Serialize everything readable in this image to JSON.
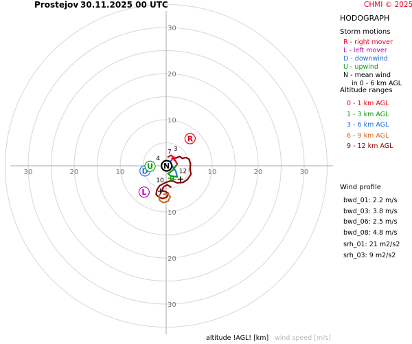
{
  "header": {
    "station": "Prostejov",
    "datetime": "30.11.2025 00 UTC",
    "credit": "CHMI © 2025"
  },
  "side_panel": {
    "title": "HODOGRAPH",
    "storm_motions_title": "Storm motions",
    "storm_motions": [
      {
        "text": "R - right mover",
        "color": "#e8001c"
      },
      {
        "text": "L - left mover",
        "color": "#b000b0"
      },
      {
        "text": "D - downwind",
        "color": "#1f6fe0"
      },
      {
        "text": "U - upwind",
        "color": "#0a9a0a"
      },
      {
        "text": "N - mean wind",
        "color": "#000000"
      },
      {
        "text": "in 0 - 6 km AGL",
        "color": "#000000"
      }
    ],
    "altitude_title": "Altitude ranges",
    "altitude_ranges": [
      {
        "text": "0 - 1 km AGL",
        "color": "#e8001c"
      },
      {
        "text": "1 - 3 km AGL",
        "color": "#0a9a0a"
      },
      {
        "text": "3 - 6 km AGL",
        "color": "#1f6fe0"
      },
      {
        "text": "6 - 9 km AGL",
        "color": "#d2691e"
      },
      {
        "text": "9 - 12 km AGL",
        "color": "#8b0000"
      }
    ],
    "wind_profile_title": "Wind profile",
    "wind_profile": [
      {
        "text": "bwd_01: 2.2 m/s"
      },
      {
        "text": "bwd_03: 3.8 m/s"
      },
      {
        "text": "bwd_06: 2.5 m/s"
      },
      {
        "text": "bwd_08: 4.8 m/s"
      }
    ],
    "srh": [
      {
        "text": "srh_01: 21 m2/s2"
      },
      {
        "text": "srh_03: 9 m2/s2"
      }
    ]
  },
  "footer": {
    "xlabel": "altitude !AGL! [km]",
    "unit_label": "wind speed [m/s]"
  },
  "chart_data": {
    "type": "line",
    "title": "HODOGRAPH",
    "xlim": [
      -35,
      35
    ],
    "ylim": [
      -35,
      35
    ],
    "ring_values": [
      5,
      10,
      15,
      20,
      25,
      30,
      35
    ],
    "tick_values": [
      10,
      20,
      30
    ],
    "x_tick_labels": [
      "30",
      "20",
      "10",
      "10",
      "20",
      "30"
    ],
    "y_tick_labels": [
      "30",
      "20",
      "10",
      "10",
      "20",
      "30"
    ],
    "grid": true,
    "series": [
      {
        "name": "0 - 1 km AGL",
        "color": "#e8001c",
        "points": [
          [
            0.4,
            1.9
          ],
          [
            1.1,
            2.3
          ],
          [
            1.8,
            1.4
          ],
          [
            2.4,
            0.4
          ]
        ]
      },
      {
        "name": "1 - 3 km AGL",
        "color": "#0a9a0a",
        "points": [
          [
            2.4,
            0.4
          ],
          [
            1.4,
            -1.0
          ],
          [
            0.4,
            -1.7
          ],
          [
            1.0,
            -2.2
          ],
          [
            2.4,
            -2.4
          ]
        ]
      },
      {
        "name": "3 - 6 km AGL",
        "color": "#1f6fe0",
        "points": [
          [
            2.4,
            -2.4
          ],
          [
            2.1,
            -1.2
          ],
          [
            1.4,
            -0.2
          ],
          [
            0.8,
            0.8
          ],
          [
            1.4,
            1.5
          ]
        ]
      },
      {
        "name": "6 - 9 km AGL",
        "color": "#d2691e",
        "points": [
          [
            -1.0,
            -5.6
          ],
          [
            -1.6,
            -6.7
          ],
          [
            -1.4,
            -7.5
          ],
          [
            -0.6,
            -8.0
          ],
          [
            0.4,
            -7.7
          ],
          [
            0.9,
            -6.7
          ],
          [
            0.3,
            -6.0
          ],
          [
            -0.5,
            -6.2
          ]
        ]
      },
      {
        "name": "9 - 12 km AGL",
        "color": "#8b0000",
        "points": [
          [
            1.4,
            1.5
          ],
          [
            3.0,
            2.0
          ],
          [
            3.5,
            1.6
          ],
          [
            4.3,
            1.8
          ],
          [
            5.0,
            1.4
          ],
          [
            5.3,
            0.4
          ],
          [
            5.2,
            -0.8
          ],
          [
            5.4,
            -1.8
          ],
          [
            4.6,
            -3.0
          ],
          [
            3.7,
            -3.6
          ],
          [
            2.4,
            -3.7
          ],
          [
            1.1,
            -3.2
          ],
          [
            -0.3,
            -3.7
          ],
          [
            -1.4,
            -4.3
          ],
          [
            -2.0,
            -5.2
          ],
          [
            -2.2,
            -6.2
          ],
          [
            -1.6,
            -6.8
          ],
          [
            -0.8,
            -7.1
          ],
          [
            0.1,
            -6.8
          ],
          [
            0.5,
            -6.0
          ],
          [
            -0.1,
            -5.6
          ],
          [
            -0.9,
            -5.4
          ],
          [
            -0.6,
            -4.6
          ],
          [
            0.2,
            -4.1
          ],
          [
            1.0,
            -4.6
          ]
        ]
      }
    ],
    "height_labels": [
      {
        "text": "3",
        "x": 1.6,
        "y": 3.3
      },
      {
        "text": "7",
        "x": 0.3,
        "y": 2.6
      },
      {
        "text": "4",
        "x": -2.2,
        "y": 1.2
      },
      {
        "text": "12",
        "x": 2.8,
        "y": -1.6
      },
      {
        "text": "10",
        "x": -2.2,
        "y": -3.6
      }
    ],
    "storm_motions": [
      {
        "letter": "R",
        "x": 5.2,
        "y": 5.9,
        "color": "#e8001c"
      },
      {
        "letter": "L",
        "x": -4.8,
        "y": -5.7,
        "color": "#b000b0"
      },
      {
        "letter": "D",
        "x": -4.6,
        "y": -1.1,
        "color": "#1f6fe0"
      },
      {
        "letter": "U",
        "x": -3.5,
        "y": -0.1,
        "color": "#0a9a0a"
      },
      {
        "letter": "N",
        "x": 0.1,
        "y": 0.0,
        "color": "#000000"
      }
    ],
    "markers": [
      {
        "x": 1.7,
        "y": 1.6,
        "color": "#e8001c"
      },
      {
        "x": 1.0,
        "y": -2.7,
        "color": "#0a9a0a"
      },
      {
        "x": 1.6,
        "y": -3.0,
        "color": "#1f6fe0"
      },
      {
        "x": 3.1,
        "y": -2.9,
        "color": "#000000"
      },
      {
        "x": -1.2,
        "y": -5.5,
        "color": "#000000"
      }
    ]
  }
}
